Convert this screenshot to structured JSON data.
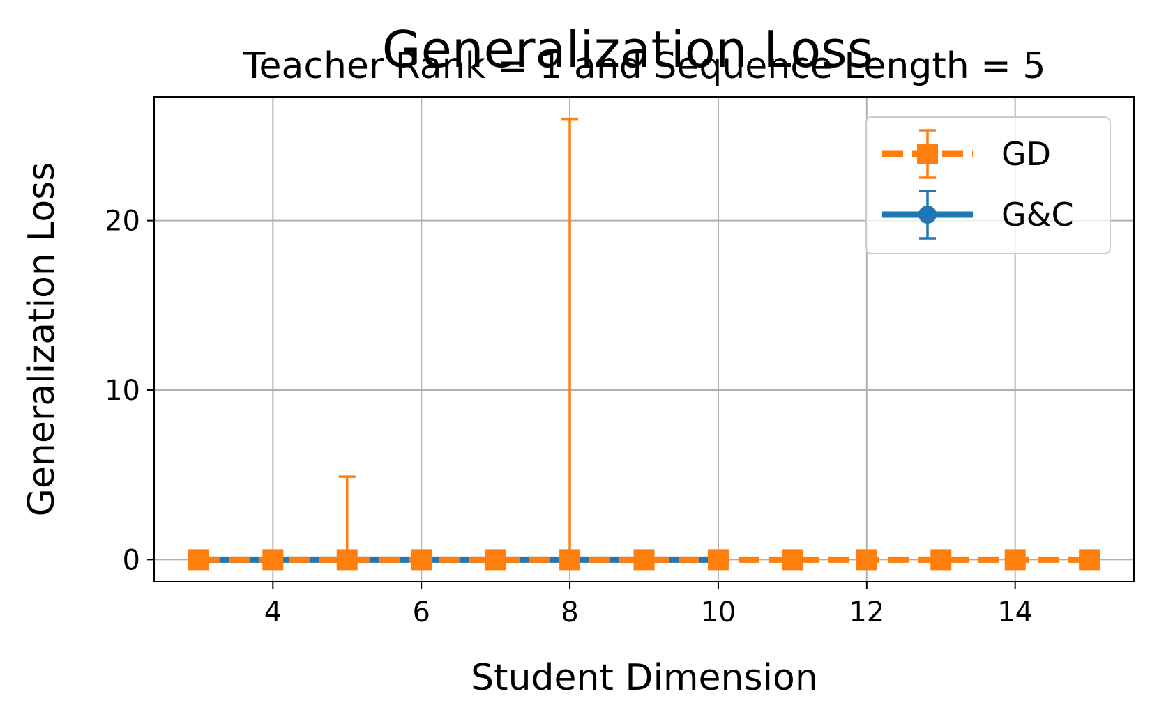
{
  "chart_data": {
    "type": "line",
    "title": "Generalization Loss",
    "subtitle": "Teacher Rank = 1 and Sequence Length = 5",
    "xlabel": "Student Dimension",
    "ylabel": "Generalization Loss",
    "xlim": [
      2.4,
      15.6
    ],
    "ylim": [
      -1.3,
      27.3
    ],
    "xticks": [
      4,
      6,
      8,
      10,
      12,
      14
    ],
    "yticks": [
      0,
      10,
      20
    ],
    "grid": true,
    "legend_position": "top-right",
    "series": [
      {
        "name": "GD",
        "color": "#ff7f0e",
        "linestyle": "dashed",
        "marker": "square",
        "x": [
          3,
          4,
          5,
          6,
          7,
          8,
          9,
          10,
          11,
          12,
          13,
          14,
          15
        ],
        "y": [
          0,
          0,
          0,
          0,
          0,
          0,
          0,
          0,
          0,
          0,
          0,
          0,
          0
        ],
        "yerr_upper": [
          0,
          0,
          4.9,
          0,
          0,
          26.0,
          0,
          0,
          0,
          0,
          0,
          0,
          0
        ]
      },
      {
        "name": "G&C",
        "color": "#1f77b4",
        "linestyle": "solid",
        "marker": "circle",
        "x": [
          3,
          4,
          5,
          6,
          7,
          8,
          9,
          10
        ],
        "y": [
          0,
          0,
          0,
          0,
          0,
          0,
          0,
          0
        ],
        "yerr_upper": [
          0,
          0,
          0,
          0,
          0,
          0,
          0,
          0
        ]
      }
    ]
  }
}
